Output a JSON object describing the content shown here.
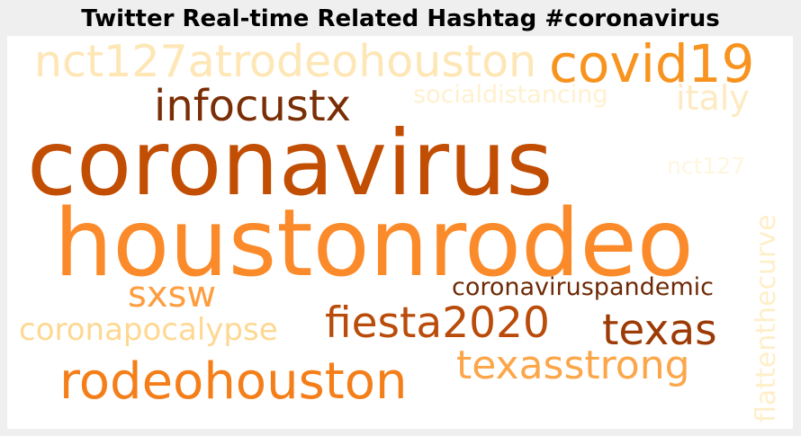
{
  "title": "Twitter Real-time Related Hashtag #coronavirus",
  "words": {
    "nct127atrodeohouston": {
      "text": "nct127atrodeohouston",
      "color": "#fee6b5"
    },
    "covid19": {
      "text": "covid19",
      "color": "#f7931e"
    },
    "infocustx": {
      "text": "infocustx",
      "color": "#7a2e05"
    },
    "socialdistancing": {
      "text": "socialdistancing",
      "color": "#fff1cf"
    },
    "italy": {
      "text": "italy",
      "color": "#feeac2"
    },
    "coronavirus": {
      "text": "coronavirus",
      "color": "#c24e04"
    },
    "nct127": {
      "text": "nct127",
      "color": "#fff6e0"
    },
    "flattenthecurve": {
      "text": "flattenthecurve",
      "color": "#feefc8"
    },
    "houstonrodeo": {
      "text": "houstonrodeo",
      "color": "#fb8b2a"
    },
    "sxsw": {
      "text": "sxsw",
      "color": "#fd9d3f"
    },
    "coronaviruspandemic": {
      "text": "coronaviruspandemic",
      "color": "#6e2a06"
    },
    "coronapocalypse": {
      "text": "coronapocalypse",
      "color": "#fed892"
    },
    "fiesta2020": {
      "text": "fiesta2020",
      "color": "#b94c0a"
    },
    "texas": {
      "text": "texas",
      "color": "#9c3b06"
    },
    "texasstrong": {
      "text": "texasstrong",
      "color": "#fca64a"
    },
    "rodeohouston": {
      "text": "rodeohouston",
      "color": "#f47f1a"
    }
  }
}
